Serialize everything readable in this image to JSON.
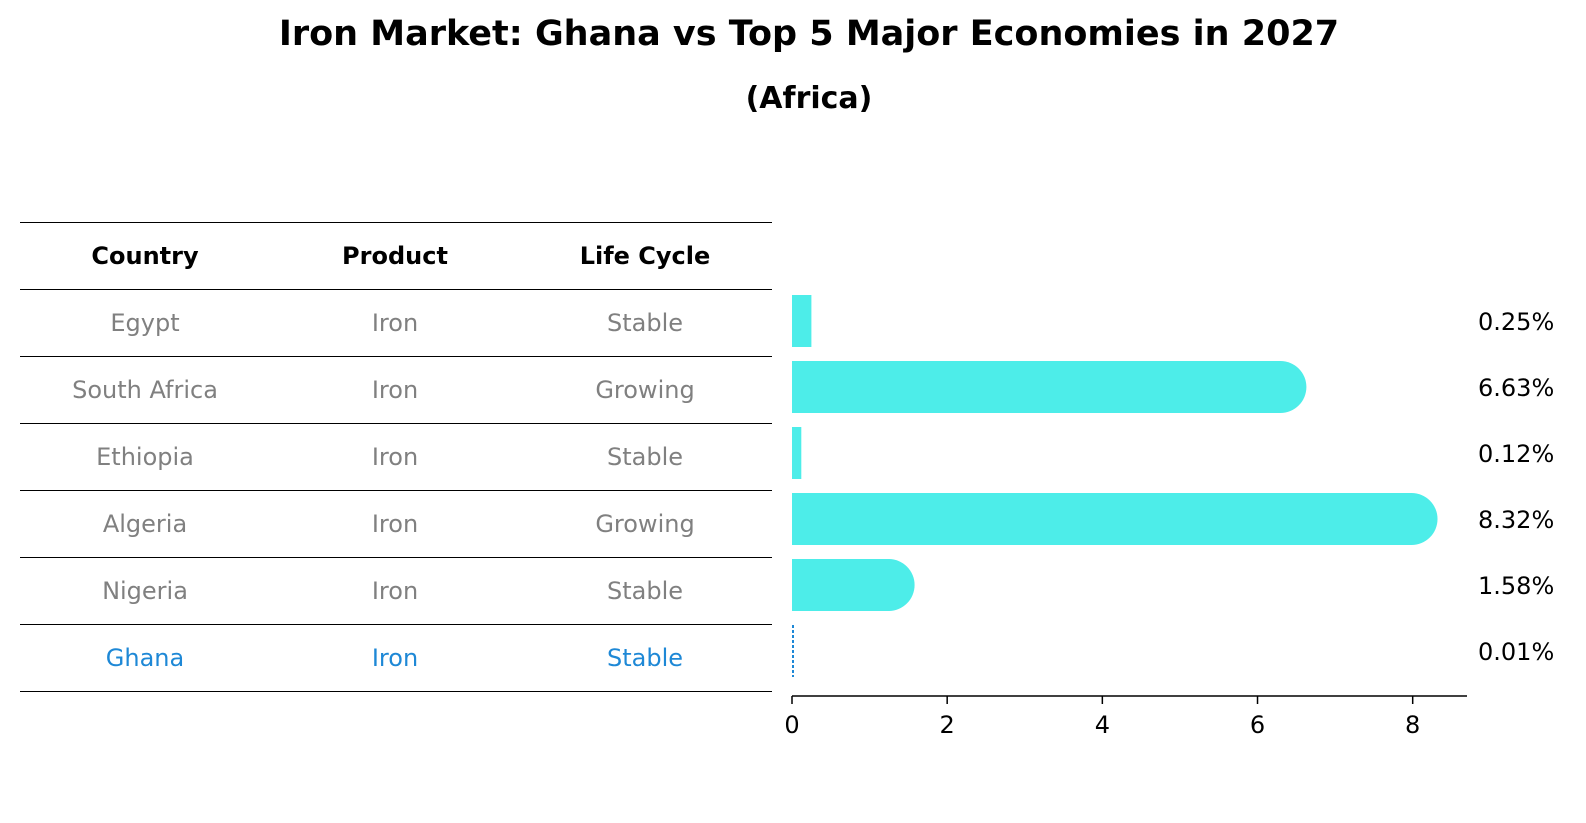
{
  "chart_data": {
    "type": "bar",
    "orientation": "horizontal",
    "title": "Iron Market: Ghana vs Top 5 Major Economies in 2027",
    "subtitle": "(Africa)",
    "categories": [
      "Egypt",
      "South Africa",
      "Ethiopia",
      "Algeria",
      "Nigeria",
      "Ghana"
    ],
    "values": [
      0.25,
      6.63,
      0.12,
      8.32,
      1.58,
      0.01
    ],
    "value_labels": [
      "0.25%",
      "6.63%",
      "0.12%",
      "8.32%",
      "1.58%",
      "0.01%"
    ],
    "x_ticks": [
      0,
      2,
      4,
      6,
      8
    ],
    "xlim": [
      0,
      8.7
    ],
    "highlight": "Ghana",
    "bar_color": "#4dede9",
    "highlight_color": "#1e88d6",
    "grid": false
  },
  "table": {
    "headers": [
      "Country",
      "Product",
      "Life Cycle"
    ],
    "rows": [
      [
        "Egypt",
        "Iron",
        "Stable"
      ],
      [
        "South Africa",
        "Iron",
        "Growing"
      ],
      [
        "Ethiopia",
        "Iron",
        "Stable"
      ],
      [
        "Algeria",
        "Iron",
        "Growing"
      ],
      [
        "Nigeria",
        "Iron",
        "Stable"
      ],
      [
        "Ghana",
        "Iron",
        "Stable"
      ]
    ]
  }
}
